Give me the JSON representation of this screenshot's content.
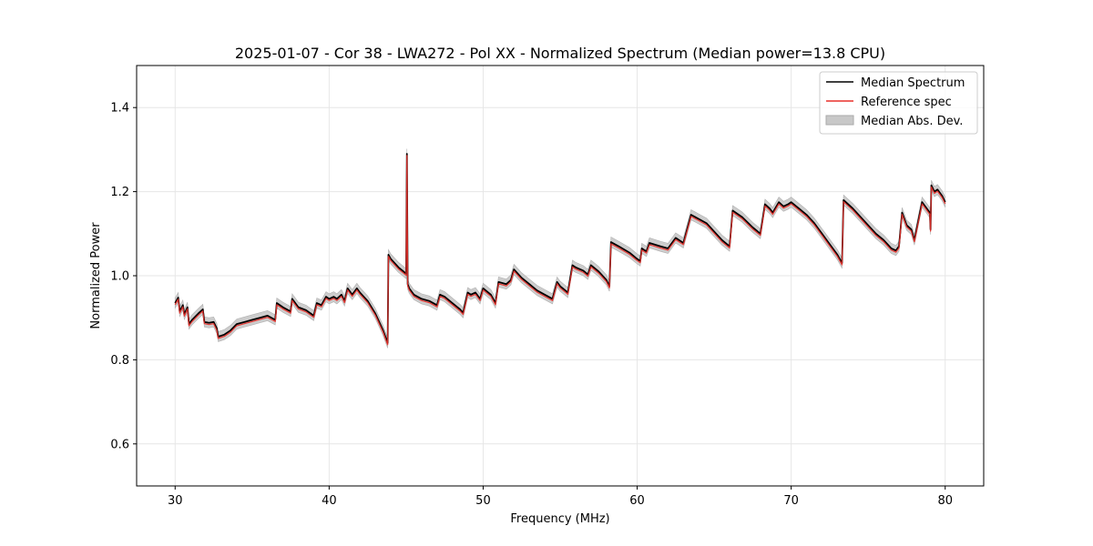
{
  "chart_data": {
    "type": "line",
    "title": "2025-01-07 - Cor 38 - LWA272 - Pol XX - Normalized Spectrum (Median power=13.8 CPU)",
    "xlabel": "Frequency (MHz)",
    "ylabel": "Normalized Power",
    "xlim": [
      27.5,
      82.5
    ],
    "ylim": [
      0.5,
      1.5
    ],
    "xticks": [
      30,
      40,
      50,
      60,
      70,
      80
    ],
    "yticks": [
      0.6,
      0.8,
      1.0,
      1.2,
      1.4
    ],
    "xtick_labels": [
      "30",
      "40",
      "50",
      "60",
      "70",
      "80"
    ],
    "ytick_labels": [
      "0.6",
      "0.8",
      "1.0",
      "1.2",
      "1.4"
    ],
    "grid": true,
    "legend_position": "top-right",
    "series": [
      {
        "name": "Median Spectrum",
        "color": "#000000",
        "x": [
          30.0,
          30.2,
          30.3,
          30.5,
          30.6,
          30.8,
          30.9,
          31.0,
          31.1,
          31.5,
          31.8,
          31.9,
          32.2,
          32.5,
          32.7,
          32.8,
          33.2,
          33.6,
          34.0,
          34.5,
          35.0,
          35.5,
          36.0,
          36.5,
          36.6,
          37.0,
          37.5,
          37.6,
          38.0,
          38.5,
          39.0,
          39.2,
          39.5,
          39.8,
          40.0,
          40.3,
          40.5,
          40.8,
          41.0,
          41.2,
          41.5,
          41.8,
          42.0,
          42.5,
          43.0,
          43.5,
          43.8,
          43.85,
          44.0,
          44.5,
          45.0,
          45.05,
          45.1,
          45.2,
          45.5,
          46.0,
          46.5,
          47.0,
          47.2,
          47.5,
          48.0,
          48.5,
          48.7,
          49.0,
          49.2,
          49.5,
          49.8,
          50.0,
          50.5,
          50.8,
          51.0,
          51.5,
          51.8,
          52.0,
          52.5,
          53.0,
          53.5,
          54.0,
          54.5,
          54.8,
          55.0,
          55.5,
          55.8,
          56.0,
          56.5,
          56.8,
          57.0,
          57.5,
          58.0,
          58.2,
          58.3,
          58.8,
          59.5,
          60.0,
          60.2,
          60.3,
          60.6,
          60.8,
          61.5,
          62.0,
          62.3,
          62.5,
          63.0,
          63.5,
          64.0,
          64.5,
          65.0,
          65.5,
          66.0,
          66.2,
          66.8,
          67.5,
          68.0,
          68.3,
          68.6,
          68.8,
          69.2,
          69.5,
          69.8,
          70.0,
          70.5,
          71.0,
          71.5,
          72.0,
          72.5,
          73.0,
          73.3,
          73.4,
          74.0,
          74.5,
          75.0,
          75.5,
          76.0,
          76.5,
          76.8,
          77.0,
          77.2,
          77.5,
          77.8,
          78.0,
          78.5,
          79.0,
          79.05,
          79.1,
          79.3,
          79.5,
          79.8,
          80.0
        ],
        "values": [
          0.935,
          0.948,
          0.915,
          0.93,
          0.908,
          0.925,
          0.885,
          0.89,
          0.895,
          0.91,
          0.92,
          0.89,
          0.888,
          0.89,
          0.875,
          0.855,
          0.86,
          0.87,
          0.885,
          0.89,
          0.895,
          0.9,
          0.905,
          0.895,
          0.935,
          0.925,
          0.915,
          0.945,
          0.925,
          0.918,
          0.905,
          0.935,
          0.93,
          0.95,
          0.945,
          0.95,
          0.945,
          0.955,
          0.94,
          0.97,
          0.955,
          0.97,
          0.96,
          0.94,
          0.91,
          0.87,
          0.84,
          1.05,
          1.04,
          1.02,
          1.005,
          1.29,
          0.98,
          0.97,
          0.955,
          0.945,
          0.94,
          0.93,
          0.955,
          0.95,
          0.935,
          0.92,
          0.912,
          0.96,
          0.955,
          0.96,
          0.945,
          0.97,
          0.955,
          0.935,
          0.985,
          0.98,
          0.99,
          1.015,
          0.995,
          0.98,
          0.965,
          0.955,
          0.945,
          0.985,
          0.975,
          0.96,
          1.025,
          1.02,
          1.012,
          1.003,
          1.025,
          1.01,
          0.99,
          0.975,
          1.08,
          1.07,
          1.055,
          1.04,
          1.035,
          1.065,
          1.058,
          1.078,
          1.07,
          1.065,
          1.08,
          1.09,
          1.078,
          1.145,
          1.135,
          1.125,
          1.105,
          1.085,
          1.07,
          1.155,
          1.14,
          1.115,
          1.1,
          1.17,
          1.16,
          1.15,
          1.175,
          1.165,
          1.17,
          1.175,
          1.16,
          1.145,
          1.125,
          1.1,
          1.075,
          1.05,
          1.03,
          1.18,
          1.16,
          1.14,
          1.12,
          1.1,
          1.085,
          1.065,
          1.06,
          1.07,
          1.15,
          1.12,
          1.11,
          1.085,
          1.175,
          1.15,
          1.11,
          1.215,
          1.2,
          1.205,
          1.19,
          1.175
        ]
      },
      {
        "name": "Reference spec",
        "color": "#e8302a"
      },
      {
        "name": "Median Abs. Dev.",
        "color": "#c8c8c8",
        "mad_width": 0.012
      }
    ]
  }
}
